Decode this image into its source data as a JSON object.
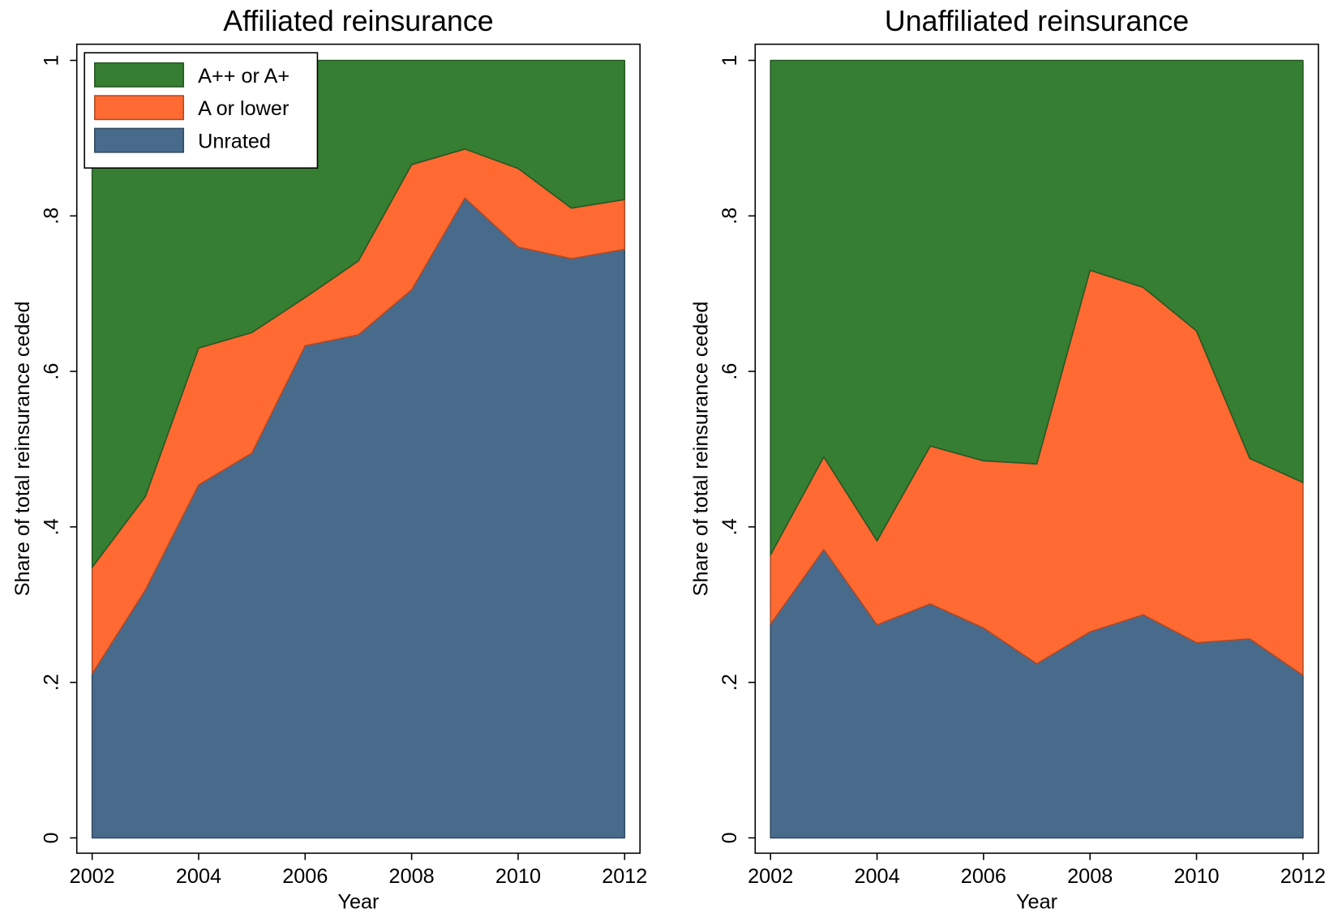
{
  "chart_data": [
    {
      "type": "area",
      "title": "Affiliated reinsurance",
      "xlabel": "Year",
      "ylabel": "Share of total reinsurance ceded",
      "x": [
        2002,
        2003,
        2004,
        2005,
        2006,
        2007,
        2008,
        2009,
        2010,
        2011,
        2012
      ],
      "series": [
        {
          "name": "Unrated",
          "color": "#486b8c",
          "values": [
            0.211,
            0.319,
            0.454,
            0.495,
            0.633,
            0.647,
            0.705,
            0.823,
            0.76,
            0.745,
            0.757
          ]
        },
        {
          "name": "A or lower",
          "color": "#ff6a33",
          "values": [
            0.137,
            0.12,
            0.176,
            0.155,
            0.062,
            0.095,
            0.161,
            0.063,
            0.101,
            0.065,
            0.064
          ]
        },
        {
          "name": "A++ or A+",
          "color": "#367e32",
          "values": [
            0.652,
            0.561,
            0.37,
            0.35,
            0.305,
            0.258,
            0.134,
            0.114,
            0.139,
            0.19,
            0.179
          ]
        }
      ],
      "xlim": [
        2002,
        2012
      ],
      "xticks": [
        2002,
        2004,
        2006,
        2008,
        2010,
        2012
      ],
      "ylim": [
        0,
        1
      ],
      "yticks": [
        0,
        {
          "value": 0.2,
          "label": ".2"
        },
        {
          "value": 0.4,
          "label": ".4"
        },
        {
          "value": 0.6,
          "label": ".6"
        },
        {
          "value": 0.8,
          "label": ".8"
        },
        1
      ],
      "legend": "top-left"
    },
    {
      "type": "area",
      "title": "Unaffiliated reinsurance",
      "xlabel": "Year",
      "ylabel": "Share of total reinsurance ceded",
      "x": [
        2002,
        2003,
        2004,
        2005,
        2006,
        2007,
        2008,
        2009,
        2010,
        2011,
        2012
      ],
      "series": [
        {
          "color": "#486b8c",
          "values": [
            0.275,
            0.371,
            0.274,
            0.301,
            0.27,
            0.224,
            0.265,
            0.287,
            0.251,
            0.256,
            0.209
          ]
        },
        {
          "color": "#ff6a33",
          "values": [
            0.089,
            0.119,
            0.108,
            0.203,
            0.215,
            0.257,
            0.465,
            0.421,
            0.401,
            0.232,
            0.248
          ]
        },
        {
          "color": "#367e32",
          "values": [
            0.636,
            0.51,
            0.618,
            0.496,
            0.515,
            0.519,
            0.27,
            0.292,
            0.348,
            0.512,
            0.543
          ]
        }
      ],
      "xlim": [
        2002,
        2012
      ],
      "xticks": [
        2002,
        2004,
        2006,
        2008,
        2010,
        2012
      ],
      "ylim": [
        0,
        1
      ],
      "yticks": [
        0,
        {
          "value": 0.2,
          "label": ".2"
        },
        {
          "value": 0.4,
          "label": ".4"
        },
        {
          "value": 0.6,
          "label": ".6"
        },
        {
          "value": 0.8,
          "label": ".8"
        },
        1
      ]
    }
  ]
}
